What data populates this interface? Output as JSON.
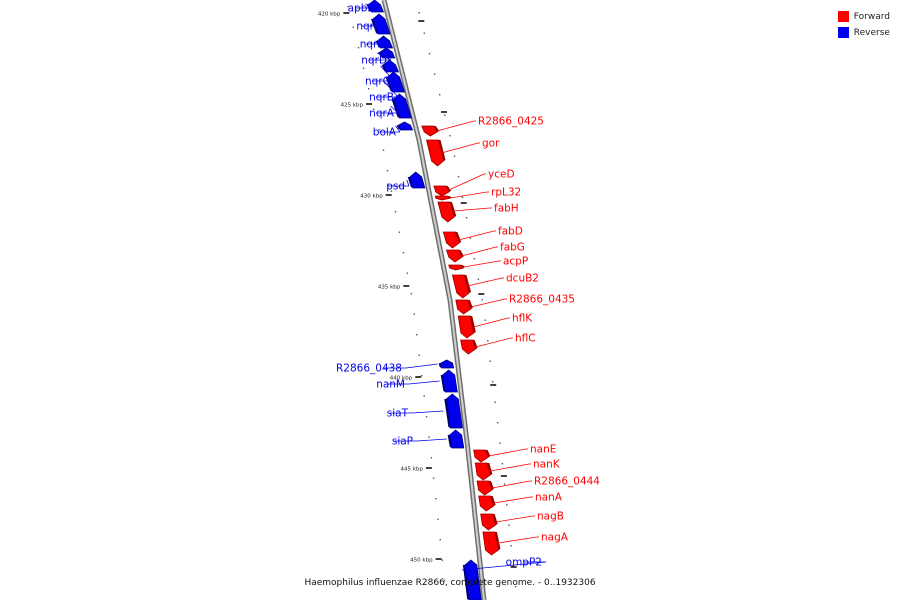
{
  "caption": "Haemophilus influenzae R2866, complete genome. - 0..1932306",
  "colors": {
    "forward": "#ff0000",
    "reverse": "#0000ee",
    "backbone": "#a0a0a0"
  },
  "legend": [
    {
      "label": "Forward",
      "strand": "forward"
    },
    {
      "label": "Reverse",
      "strand": "reverse"
    }
  ],
  "ticks": [
    {
      "label": "420 kbp",
      "kbp": 420
    },
    {
      "label": "425 kbp",
      "kbp": 425
    },
    {
      "label": "430 kbp",
      "kbp": 430
    },
    {
      "label": "435 kbp",
      "kbp": 435
    },
    {
      "label": "440 kbp",
      "kbp": 440
    },
    {
      "label": "445 kbp",
      "kbp": 445
    },
    {
      "label": "450 kbp",
      "kbp": 450
    }
  ],
  "genes": [
    {
      "name": "apbE",
      "strand": "reverse"
    },
    {
      "name": "nqrF",
      "strand": "reverse"
    },
    {
      "name": "nqrE",
      "strand": "reverse"
    },
    {
      "name": "nqrD",
      "strand": "reverse"
    },
    {
      "name": "nqrC",
      "strand": "reverse"
    },
    {
      "name": "nqrB",
      "strand": "reverse"
    },
    {
      "name": "nqrA",
      "strand": "reverse"
    },
    {
      "name": "bolA",
      "strand": "reverse"
    },
    {
      "name": "psd",
      "strand": "reverse"
    },
    {
      "name": "R2866_0425",
      "strand": "forward"
    },
    {
      "name": "gor",
      "strand": "forward"
    },
    {
      "name": "yceD",
      "strand": "forward"
    },
    {
      "name": "rpL32",
      "strand": "forward"
    },
    {
      "name": "fabH",
      "strand": "forward"
    },
    {
      "name": "fabD",
      "strand": "forward"
    },
    {
      "name": "fabG",
      "strand": "forward"
    },
    {
      "name": "acpP",
      "strand": "forward"
    },
    {
      "name": "dcuB2",
      "strand": "forward"
    },
    {
      "name": "R2866_0435",
      "strand": "forward"
    },
    {
      "name": "hflK",
      "strand": "forward"
    },
    {
      "name": "hflC",
      "strand": "forward"
    },
    {
      "name": "R2866_0438",
      "strand": "reverse"
    },
    {
      "name": "nanM",
      "strand": "reverse"
    },
    {
      "name": "siaT",
      "strand": "reverse"
    },
    {
      "name": "siaP",
      "strand": "reverse"
    },
    {
      "name": "nanE",
      "strand": "forward"
    },
    {
      "name": "nanK",
      "strand": "forward"
    },
    {
      "name": "R2866_0444",
      "strand": "forward"
    },
    {
      "name": "nanA",
      "strand": "forward"
    },
    {
      "name": "nagB",
      "strand": "forward"
    },
    {
      "name": "nagA",
      "strand": "forward"
    },
    {
      "name": "ompP2",
      "strand": "reverse"
    }
  ]
}
